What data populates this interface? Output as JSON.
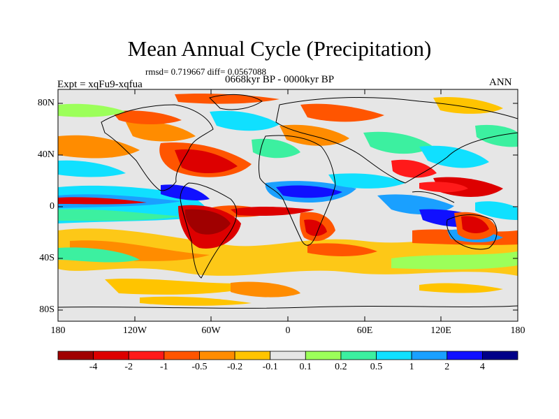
{
  "title": "Mean Annual Cycle (Precipitation)",
  "stats": "rmsd= 0.719667 diff= 0.0567088",
  "period": "0668kyr BP - 0000kyr BP",
  "experiment": "Expt = xqFu9-xqfua",
  "season": "ANN",
  "latitude_labels": [
    "80N",
    "40N",
    "0",
    "40S",
    "80S"
  ],
  "longitude_labels": [
    "180",
    "120W",
    "60W",
    "0",
    "60E",
    "120E",
    "180"
  ],
  "colorbar": {
    "labels": [
      "-4",
      "-2",
      "-1",
      "-0.5",
      "-0.2",
      "-0.1",
      "0.1",
      "0.2",
      "0.5",
      "1",
      "2",
      "4"
    ],
    "colors": [
      "#a00000",
      "#dd0000",
      "#ff1a1a",
      "#ff5500",
      "#ff8c00",
      "#ffc400",
      "#e6e6e6",
      "#9cff5a",
      "#3cf0a0",
      "#10e0ff",
      "#1aa0ff",
      "#1010ff",
      "#000088"
    ]
  }
}
